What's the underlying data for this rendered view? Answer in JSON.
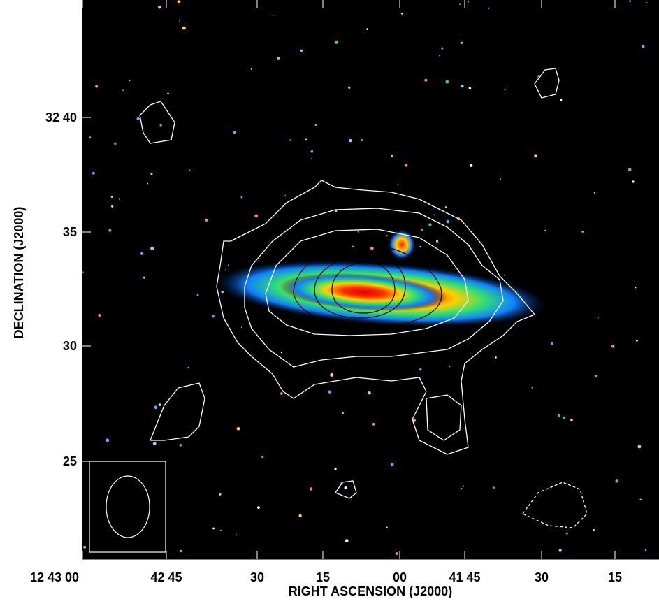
{
  "figure": {
    "x_axis_label": "RIGHT ASCENSION (J2000)",
    "y_axis_label": "DECLINATION (J2000)",
    "x_tick_labels": [
      "12 43 00",
      "42 45",
      "30",
      "15",
      "00",
      "41 45",
      "30",
      "15"
    ],
    "y_tick_labels": [
      "32 40",
      "35",
      "30",
      "25"
    ]
  }
}
